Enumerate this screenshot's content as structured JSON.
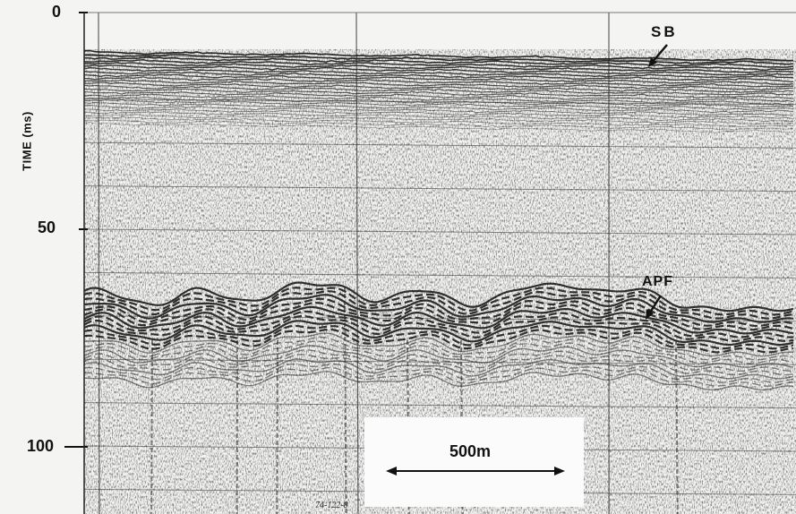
{
  "figure": {
    "y_axis": {
      "label": "TIME (ms)",
      "ticks": [
        "0",
        "50",
        "100"
      ]
    },
    "annotations": {
      "sb": "SB",
      "apf": "APF"
    },
    "scale_bar": {
      "label": "500m"
    },
    "plate_id": "74-122-8"
  },
  "colors": {
    "ink": "#111111",
    "paper": "#f4f4f2",
    "box": "#fbfbfb"
  }
}
